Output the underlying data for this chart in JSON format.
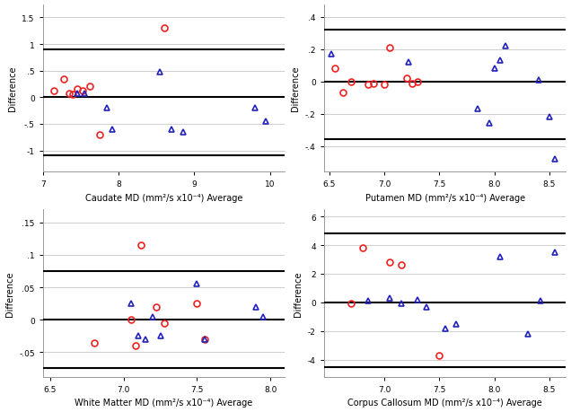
{
  "panels": [
    {
      "xlabel": "Caudate MD (mm²/s x10⁻⁴) Average",
      "ylabel": "Difference",
      "xlim": [
        7,
        10.2
      ],
      "ylim": [
        -1.4,
        1.75
      ],
      "yticks": [
        -1,
        -0.5,
        0,
        0.5,
        1,
        1.5
      ],
      "xticks": [
        7,
        8,
        9,
        10
      ],
      "hline_mean": 0.0,
      "hline_upper": 0.9,
      "hline_lower": -1.1,
      "red_circles": [
        [
          7.15,
          0.12
        ],
        [
          7.28,
          0.35
        ],
        [
          7.35,
          0.08
        ],
        [
          7.4,
          0.05
        ],
        [
          7.45,
          0.15
        ],
        [
          7.52,
          0.12
        ],
        [
          7.62,
          0.2
        ],
        [
          7.75,
          -0.7
        ],
        [
          8.6,
          1.3
        ]
      ],
      "blue_triangles": [
        [
          7.45,
          0.08
        ],
        [
          7.55,
          0.08
        ],
        [
          7.85,
          -0.2
        ],
        [
          7.92,
          -0.6
        ],
        [
          8.55,
          0.48
        ],
        [
          8.7,
          -0.6
        ],
        [
          8.85,
          -0.65
        ],
        [
          9.8,
          -0.2
        ],
        [
          9.95,
          -0.45
        ]
      ]
    },
    {
      "xlabel": "Putamen MD (mm²/s x10⁻⁴) Average",
      "ylabel": "Difference",
      "xlim": [
        6.45,
        8.65
      ],
      "ylim": [
        -0.56,
        0.48
      ],
      "yticks": [
        -0.4,
        -0.2,
        0,
        0.2,
        0.4
      ],
      "xticks": [
        6.5,
        7,
        7.5,
        8,
        8.5
      ],
      "hline_mean": 0.0,
      "hline_upper": 0.32,
      "hline_lower": -0.36,
      "red_circles": [
        [
          6.55,
          0.08
        ],
        [
          6.62,
          -0.07
        ],
        [
          6.7,
          0.0
        ],
        [
          6.85,
          -0.02
        ],
        [
          6.9,
          -0.01
        ],
        [
          7.0,
          -0.02
        ],
        [
          7.05,
          0.21
        ],
        [
          7.2,
          0.02
        ],
        [
          7.25,
          -0.01
        ],
        [
          7.3,
          0.0
        ]
      ],
      "blue_triangles": [
        [
          6.52,
          0.17
        ],
        [
          7.22,
          0.12
        ],
        [
          7.85,
          -0.17
        ],
        [
          7.95,
          -0.26
        ],
        [
          8.0,
          0.08
        ],
        [
          8.05,
          0.13
        ],
        [
          8.1,
          0.22
        ],
        [
          8.4,
          0.01
        ],
        [
          8.5,
          -0.22
        ],
        [
          8.55,
          -0.48
        ]
      ]
    },
    {
      "xlabel": "White Matter MD (mm²/s x10⁻⁴) Average",
      "ylabel": "Difference",
      "xlim": [
        6.45,
        8.1
      ],
      "ylim": [
        -0.088,
        0.17
      ],
      "yticks": [
        -0.05,
        0,
        0.05,
        0.1,
        0.15
      ],
      "xticks": [
        6.5,
        7,
        7.5,
        8
      ],
      "hline_mean": 0.0,
      "hline_upper": 0.075,
      "hline_lower": -0.075,
      "red_circles": [
        [
          6.8,
          -0.035
        ],
        [
          7.05,
          0.0
        ],
        [
          7.08,
          -0.04
        ],
        [
          7.12,
          0.115
        ],
        [
          7.22,
          0.02
        ],
        [
          7.28,
          -0.005
        ],
        [
          7.5,
          0.025
        ],
        [
          7.55,
          -0.03
        ]
      ],
      "blue_triangles": [
        [
          7.05,
          0.025
        ],
        [
          7.1,
          -0.025
        ],
        [
          7.15,
          -0.03
        ],
        [
          7.2,
          0.005
        ],
        [
          7.25,
          -0.025
        ],
        [
          7.5,
          0.055
        ],
        [
          7.55,
          -0.03
        ],
        [
          7.9,
          0.02
        ],
        [
          7.95,
          0.005
        ]
      ]
    },
    {
      "xlabel": "Corpus Callosum MD (mm²/s x10⁻⁴) Average",
      "ylabel": "Difference",
      "xlim": [
        6.45,
        8.65
      ],
      "ylim": [
        -5.2,
        6.5
      ],
      "yticks": [
        -4,
        -2,
        0,
        2,
        4,
        6
      ],
      "xticks": [
        7,
        7.5,
        8,
        8.5
      ],
      "hline_mean": 0.0,
      "hline_upper": 4.8,
      "hline_lower": -4.5,
      "red_circles": [
        [
          6.7,
          -0.05
        ],
        [
          6.8,
          3.8
        ],
        [
          7.05,
          2.8
        ],
        [
          7.15,
          2.6
        ],
        [
          7.5,
          -3.7
        ]
      ],
      "blue_triangles": [
        [
          6.85,
          0.1
        ],
        [
          7.05,
          0.3
        ],
        [
          7.15,
          -0.1
        ],
        [
          7.3,
          0.2
        ],
        [
          7.38,
          -0.3
        ],
        [
          7.55,
          -1.8
        ],
        [
          7.65,
          -1.5
        ],
        [
          8.05,
          3.2
        ],
        [
          8.3,
          -2.2
        ],
        [
          8.42,
          0.1
        ],
        [
          8.55,
          3.5
        ]
      ]
    }
  ],
  "red_color": "#EE2222",
  "blue_color": "#2222BB",
  "hline_color": "#000000",
  "bg_color": "#FFFFFF",
  "grid_color": "#BBBBBB",
  "marker_size": 5,
  "hline_lw": 1.5,
  "font_size": 7.0,
  "tick_font_size": 6.5
}
